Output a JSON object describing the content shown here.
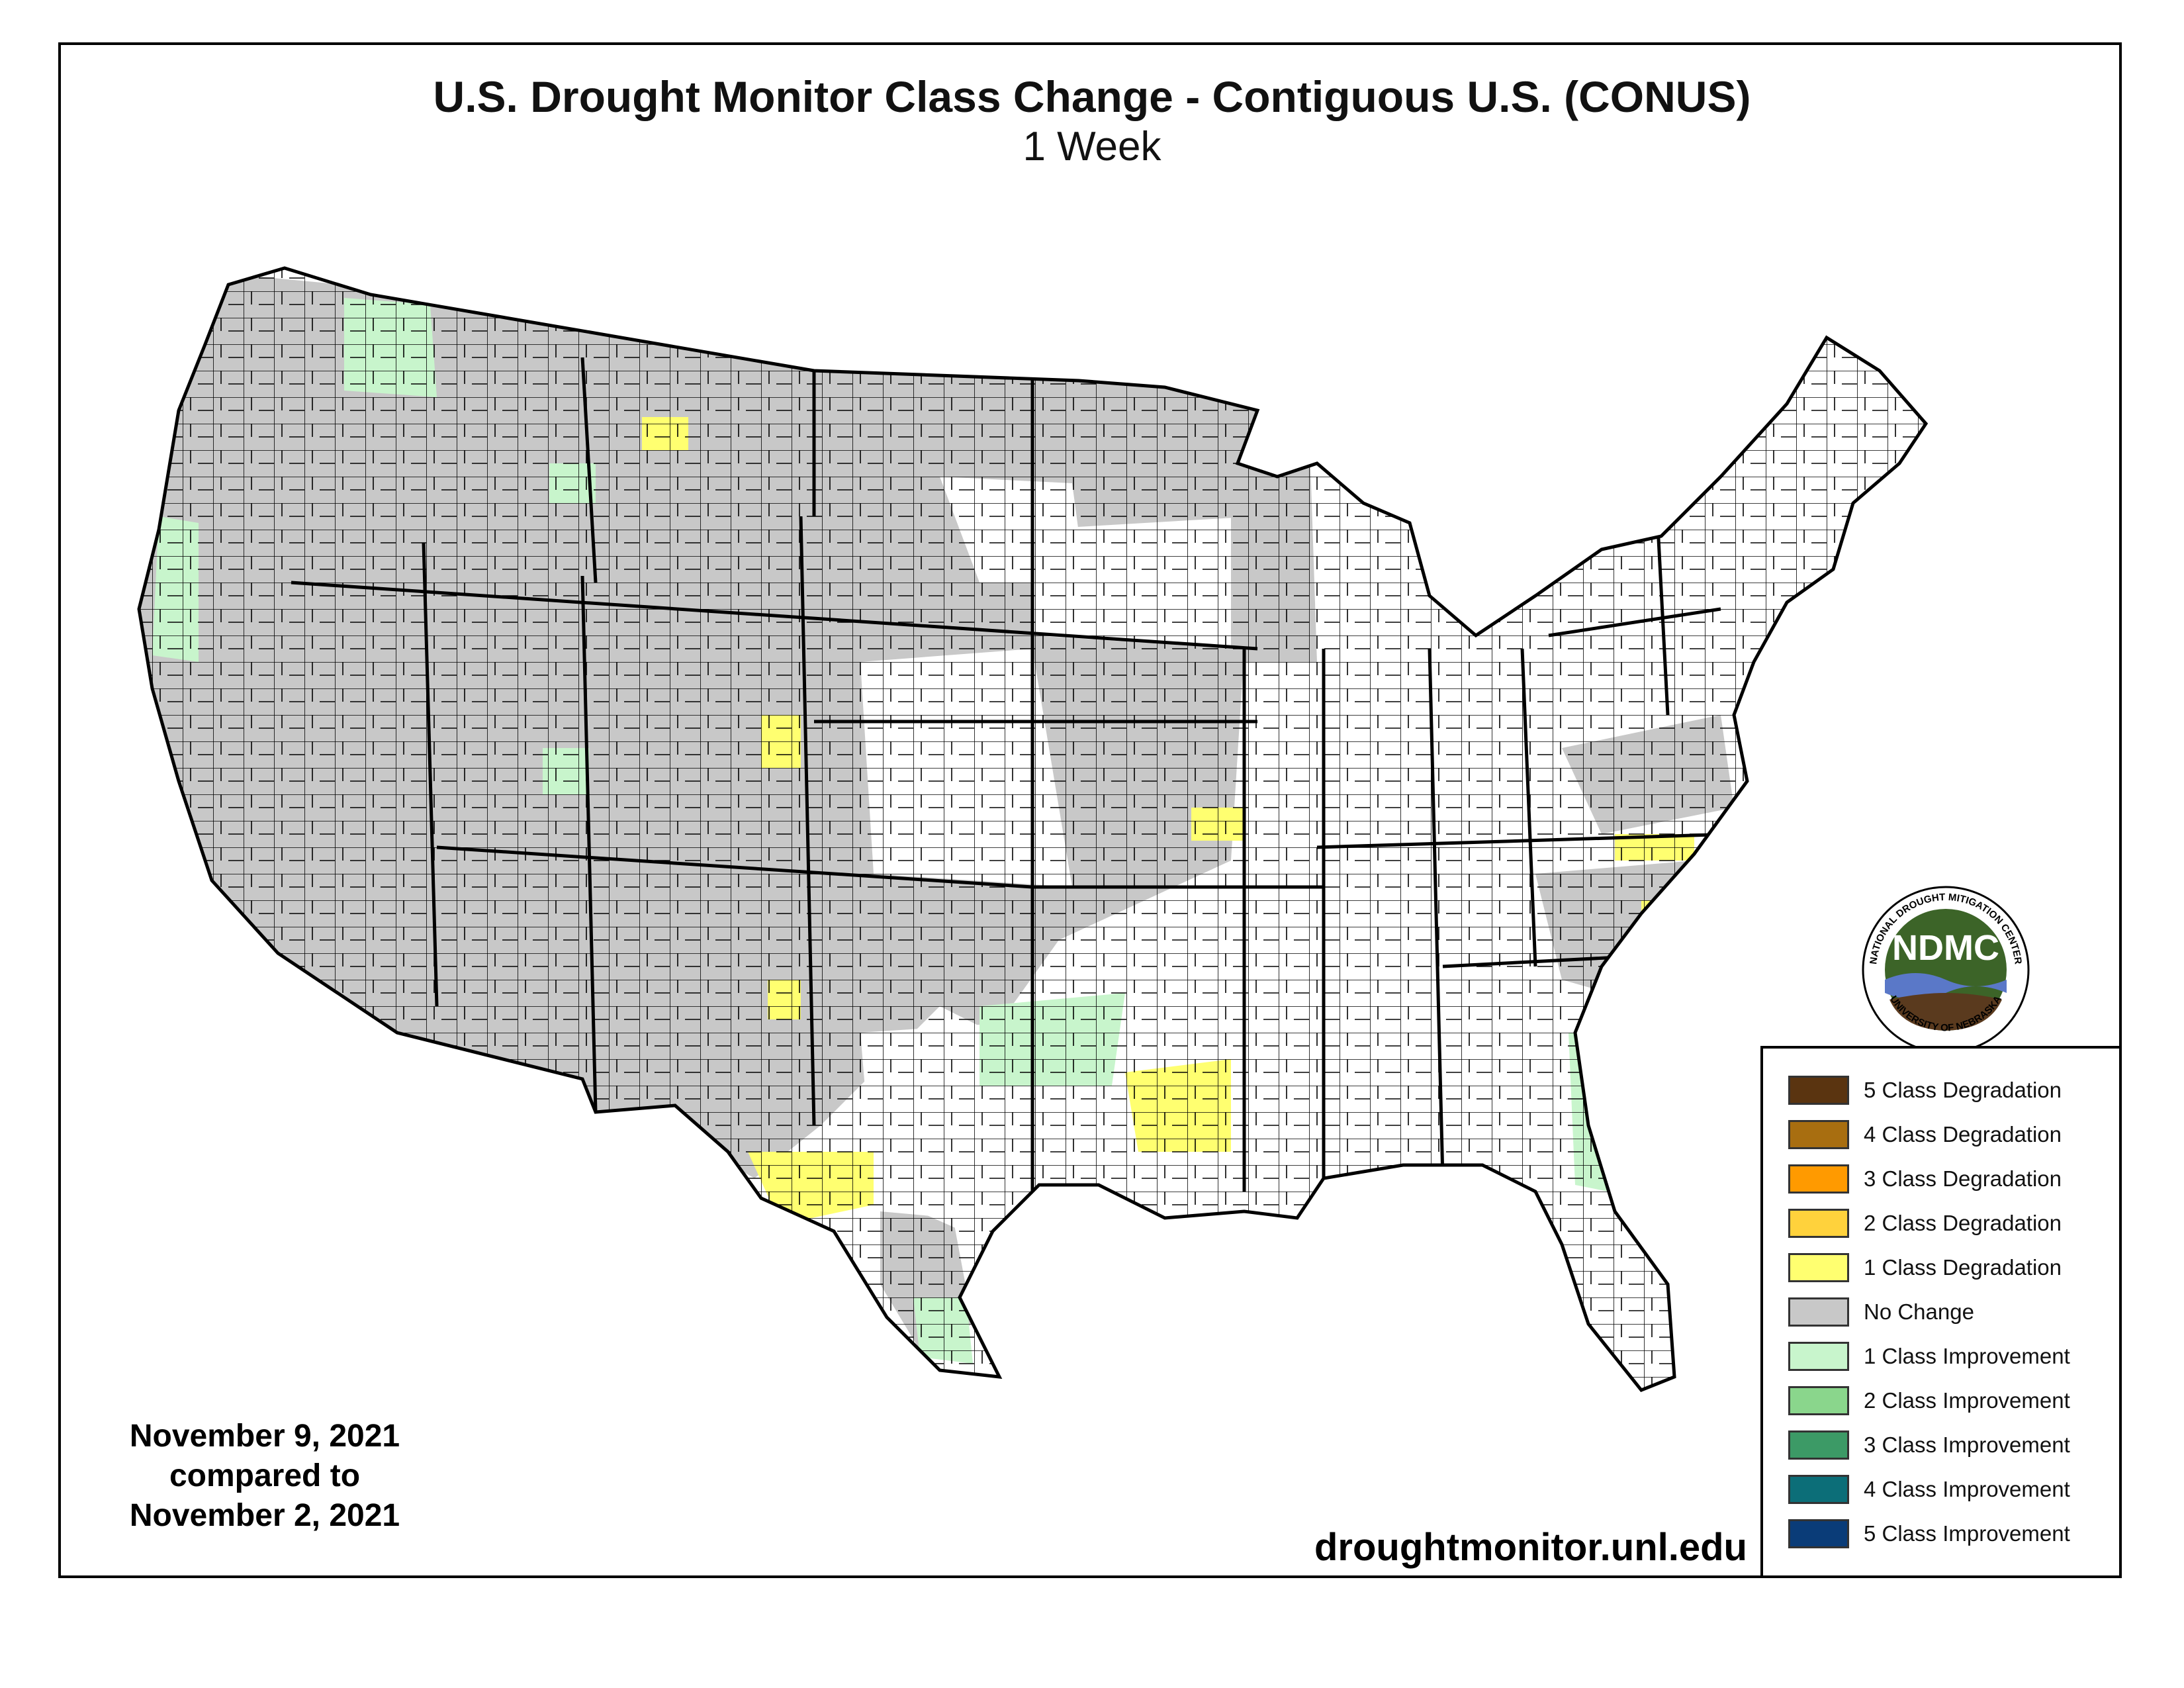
{
  "map": {
    "title": "U.S. Drought Monitor Class Change - Contiguous U.S. (CONUS)",
    "subtitle": "1 Week",
    "date_current": "November 9, 2021",
    "date_compare_text": "compared to",
    "date_previous": "November 2, 2021",
    "website": "droughtmonitor.unl.edu"
  },
  "logo": {
    "text": "NDMC",
    "ring_text_top": "NATIONAL DROUGHT MITIGATION CENTER",
    "ring_text_bottom": "UNIVERSITY OF NEBRASKA"
  },
  "legend": {
    "items": [
      {
        "label": "5 Class Degradation",
        "color": "#5a3410"
      },
      {
        "label": "4 Class Degradation",
        "color": "#a86e10"
      },
      {
        "label": "3 Class Degradation",
        "color": "#ff9a00"
      },
      {
        "label": "2 Class Degradation",
        "color": "#ffd23c"
      },
      {
        "label": "1 Class Degradation",
        "color": "#ffff70"
      },
      {
        "label": "No Change",
        "color": "#c8c8c8"
      },
      {
        "label": "1 Class Improvement",
        "color": "#c8f5cc"
      },
      {
        "label": "2 Class Improvement",
        "color": "#8ad68c"
      },
      {
        "label": "3 Class Improvement",
        "color": "#3c9a66"
      },
      {
        "label": "4 Class Improvement",
        "color": "#0c6e78"
      },
      {
        "label": "5 Class Improvement",
        "color": "#0a3c78"
      }
    ]
  },
  "colors": {
    "no_change": "#c8c8c8",
    "improve1": "#c8f5cc",
    "degrade1": "#ffff70",
    "unchanged_white": "#ffffff",
    "logo_green": "#3c6428",
    "logo_blue": "#5a78c8",
    "logo_brown": "#5a3a1e"
  }
}
